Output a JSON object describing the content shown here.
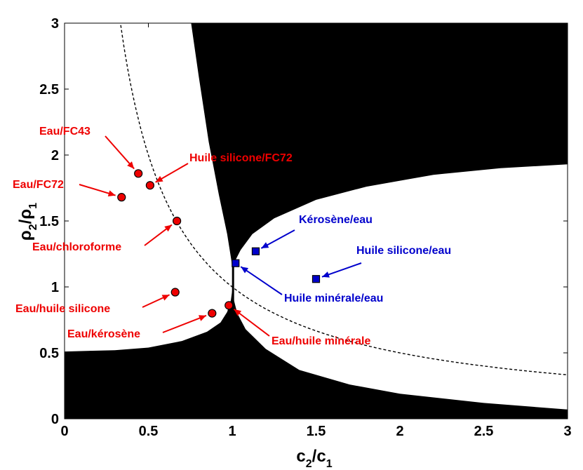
{
  "chart_data": {
    "type": "scatter",
    "xlabel": "c2/c1",
    "ylabel": "ρ2/ρ1",
    "xlim": [
      0,
      3
    ],
    "ylim": [
      0,
      3
    ],
    "xticks": [
      "0",
      "0.5",
      "1",
      "1.5",
      "2",
      "2.5",
      "3"
    ],
    "yticks": [
      "0",
      "0.5",
      "1",
      "1.5",
      "2",
      "2.5",
      "3"
    ],
    "grid": false,
    "colors": {
      "red": "#ee0000",
      "blue": "#0000cc",
      "region": "#000000"
    },
    "series": [
      {
        "color": "#ee0000",
        "marker": "circle",
        "points": [
          {
            "x": 0.44,
            "y": 1.86,
            "label": "Eau/FC43"
          },
          {
            "x": 0.51,
            "y": 1.77,
            "label": "Huile silicone/FC72"
          },
          {
            "x": 0.34,
            "y": 1.68,
            "label": "Eau/FC72"
          },
          {
            "x": 0.67,
            "y": 1.5,
            "label": "Eau/chloroforme"
          },
          {
            "x": 0.66,
            "y": 0.96,
            "label": "Eau/huile silicone"
          },
          {
            "x": 0.88,
            "y": 0.8,
            "label": "Eau/kérosène"
          },
          {
            "x": 0.98,
            "y": 0.86,
            "label": "Eau/huile minérale"
          }
        ]
      },
      {
        "color": "#0000cc",
        "marker": "square",
        "points": [
          {
            "x": 1.14,
            "y": 1.27,
            "label": "Kérosène/eau"
          },
          {
            "x": 1.02,
            "y": 1.18,
            "label": "Huile minérale/eau"
          },
          {
            "x": 1.5,
            "y": 1.06,
            "label": "Huile silicone/eau"
          }
        ]
      }
    ],
    "curve": {
      "style": "dashed",
      "relation": "y = 1 / x"
    }
  }
}
